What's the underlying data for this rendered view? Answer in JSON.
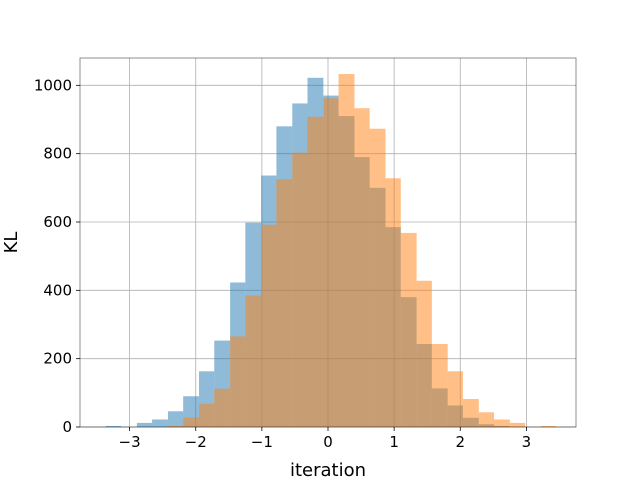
{
  "chart_data": {
    "type": "bar",
    "title": "",
    "xlabel": "iteration",
    "ylabel": "KL",
    "xlim": [
      -3.75,
      3.75
    ],
    "ylim": [
      0,
      1080
    ],
    "grid": true,
    "legend": "none",
    "xticks": [
      -3,
      -2,
      -1,
      0,
      1,
      2,
      3
    ],
    "xtick_labels": [
      "−3",
      "−2",
      "−1",
      "0",
      "1",
      "2",
      "3"
    ],
    "yticks": [
      0,
      200,
      400,
      600,
      800,
      1000
    ],
    "ytick_labels": [
      "0",
      "200",
      "400",
      "600",
      "800",
      "1000"
    ],
    "series": [
      {
        "color": "#1f77b4",
        "opacity": 0.5,
        "bins": [
          {
            "x0": -3.36,
            "x1": -3.13,
            "count": 3
          },
          {
            "x0": -2.89,
            "x1": -2.66,
            "count": 12
          },
          {
            "x0": -2.66,
            "x1": -2.42,
            "count": 22
          },
          {
            "x0": -2.42,
            "x1": -2.19,
            "count": 46
          },
          {
            "x0": -2.19,
            "x1": -1.95,
            "count": 90
          },
          {
            "x0": -1.95,
            "x1": -1.72,
            "count": 163
          },
          {
            "x0": -1.72,
            "x1": -1.48,
            "count": 253
          },
          {
            "x0": -1.48,
            "x1": -1.25,
            "count": 423
          },
          {
            "x0": -1.25,
            "x1": -1.01,
            "count": 598
          },
          {
            "x0": -1.01,
            "x1": -0.78,
            "count": 736
          },
          {
            "x0": -0.78,
            "x1": -0.54,
            "count": 880
          },
          {
            "x0": -0.54,
            "x1": -0.31,
            "count": 947
          },
          {
            "x0": -0.31,
            "x1": -0.07,
            "count": 1022
          },
          {
            "x0": -0.07,
            "x1": 0.16,
            "count": 970
          },
          {
            "x0": 0.16,
            "x1": 0.4,
            "count": 910
          },
          {
            "x0": 0.4,
            "x1": 0.63,
            "count": 790
          },
          {
            "x0": 0.63,
            "x1": 0.87,
            "count": 700
          },
          {
            "x0": 0.87,
            "x1": 1.1,
            "count": 585
          },
          {
            "x0": 1.1,
            "x1": 1.34,
            "count": 380
          },
          {
            "x0": 1.34,
            "x1": 1.57,
            "count": 243
          },
          {
            "x0": 1.57,
            "x1": 1.81,
            "count": 113
          },
          {
            "x0": 1.81,
            "x1": 2.04,
            "count": 63
          },
          {
            "x0": 2.04,
            "x1": 2.28,
            "count": 27
          },
          {
            "x0": 2.28,
            "x1": 2.51,
            "count": 8
          },
          {
            "x0": 2.51,
            "x1": 2.75,
            "count": 3
          }
        ]
      },
      {
        "color": "#ff7f0e",
        "opacity": 0.5,
        "bins": [
          {
            "x0": -2.42,
            "x1": -2.19,
            "count": 3
          },
          {
            "x0": -2.19,
            "x1": -1.95,
            "count": 28
          },
          {
            "x0": -1.95,
            "x1": -1.72,
            "count": 68
          },
          {
            "x0": -1.72,
            "x1": -1.48,
            "count": 112
          },
          {
            "x0": -1.48,
            "x1": -1.25,
            "count": 265
          },
          {
            "x0": -1.25,
            "x1": -1.01,
            "count": 385
          },
          {
            "x0": -1.01,
            "x1": -0.78,
            "count": 592
          },
          {
            "x0": -0.78,
            "x1": -0.54,
            "count": 725
          },
          {
            "x0": -0.54,
            "x1": -0.31,
            "count": 803
          },
          {
            "x0": -0.31,
            "x1": -0.07,
            "count": 908
          },
          {
            "x0": -0.07,
            "x1": 0.16,
            "count": 962
          },
          {
            "x0": 0.16,
            "x1": 0.4,
            "count": 1033
          },
          {
            "x0": 0.4,
            "x1": 0.63,
            "count": 933
          },
          {
            "x0": 0.63,
            "x1": 0.87,
            "count": 873
          },
          {
            "x0": 0.87,
            "x1": 1.1,
            "count": 728
          },
          {
            "x0": 1.1,
            "x1": 1.34,
            "count": 568
          },
          {
            "x0": 1.34,
            "x1": 1.57,
            "count": 428
          },
          {
            "x0": 1.57,
            "x1": 1.81,
            "count": 243
          },
          {
            "x0": 1.81,
            "x1": 2.04,
            "count": 163
          },
          {
            "x0": 2.04,
            "x1": 2.28,
            "count": 82
          },
          {
            "x0": 2.28,
            "x1": 2.51,
            "count": 43
          },
          {
            "x0": 2.51,
            "x1": 2.75,
            "count": 22
          },
          {
            "x0": 2.75,
            "x1": 2.98,
            "count": 12
          },
          {
            "x0": 3.22,
            "x1": 3.45,
            "count": 3
          }
        ]
      }
    ]
  }
}
